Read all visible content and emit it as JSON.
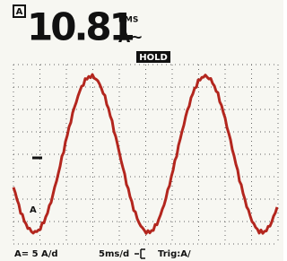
{
  "readout": {
    "channel": "A",
    "value": "10.81",
    "mode": "RMS",
    "unit": "A~"
  },
  "status": "HOLD",
  "trace_label": "A",
  "footer": {
    "scale": "A= 5 A/d",
    "timebase": "5ms/d",
    "trigger": "Trig:A/"
  }
}
